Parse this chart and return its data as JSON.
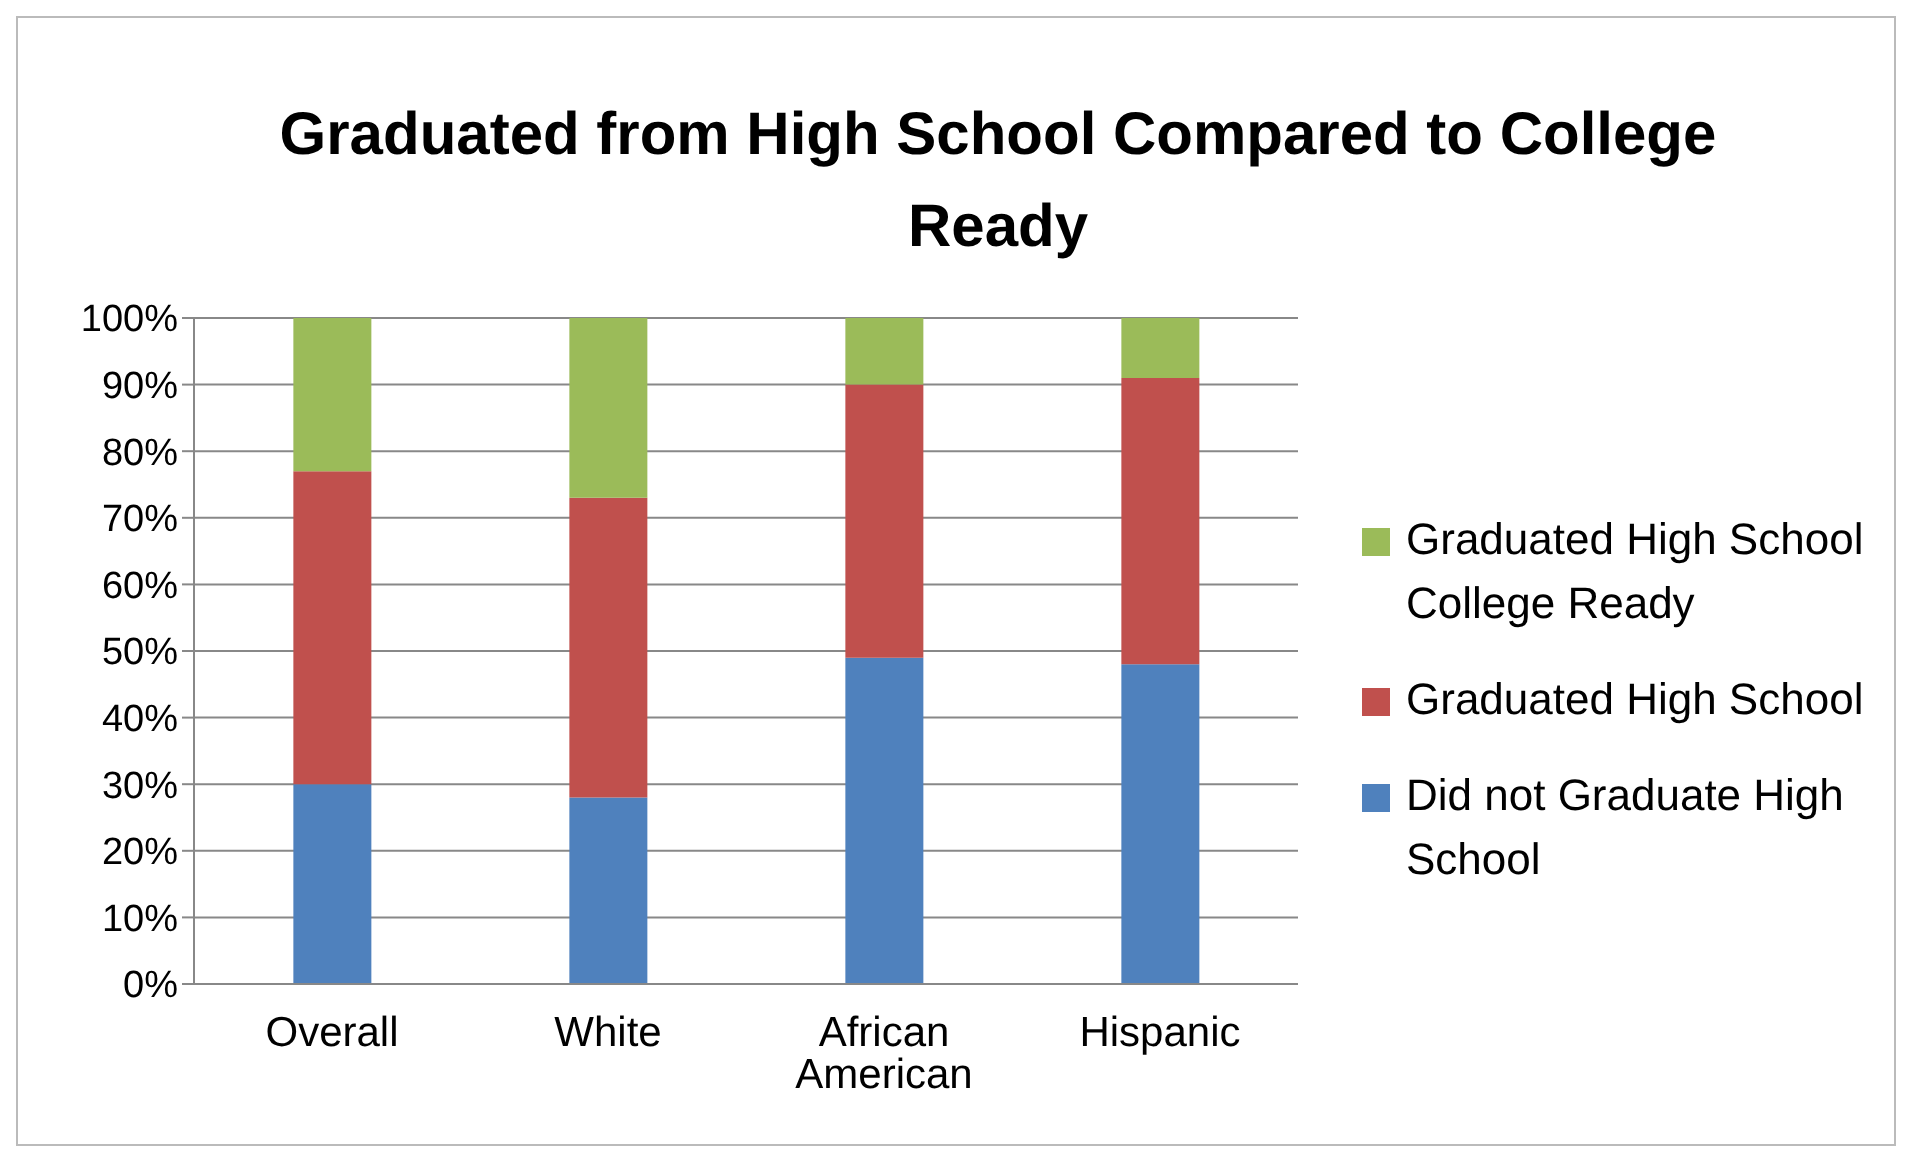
{
  "chart_data": {
    "type": "bar",
    "title": "Graduated from High School Compared to College Ready",
    "categories": [
      "Overall",
      "White",
      "African American",
      "Hispanic"
    ],
    "stacked": true,
    "series": [
      {
        "name": "Did not Graduate High School",
        "color": "#4f81bd",
        "values": [
          30,
          28,
          49,
          48
        ]
      },
      {
        "name": "Graduated High School",
        "color": "#c0504d",
        "values": [
          47,
          45,
          41,
          43
        ]
      },
      {
        "name": "Graduated High School College Ready",
        "color": "#9bbb59",
        "values": [
          23,
          27,
          10,
          9
        ]
      }
    ],
    "ylim": [
      0,
      100
    ],
    "yticks": [
      {
        "value": 0,
        "label": "0%"
      },
      {
        "value": 10,
        "label": "10%"
      },
      {
        "value": 20,
        "label": "20%"
      },
      {
        "value": 30,
        "label": "30%"
      },
      {
        "value": 40,
        "label": "40%"
      },
      {
        "value": 50,
        "label": "50%"
      },
      {
        "value": 60,
        "label": "60%"
      },
      {
        "value": 70,
        "label": "70%"
      },
      {
        "value": 80,
        "label": "80%"
      },
      {
        "value": 90,
        "label": "90%"
      },
      {
        "value": 100,
        "label": "100%"
      }
    ],
    "grid": "y",
    "legend": "right"
  }
}
